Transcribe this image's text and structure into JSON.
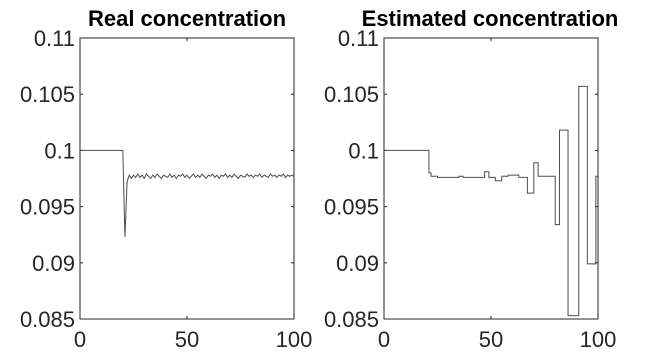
{
  "chart_data": [
    {
      "type": "line",
      "title": "Real concentration",
      "xlabel": "",
      "ylabel": "",
      "xlim": [
        0,
        100
      ],
      "ylim": [
        0.085,
        0.11
      ],
      "xticks": [
        "0",
        "50",
        "100"
      ],
      "yticks": [
        "0.085",
        "0.09",
        "0.095",
        "0.1",
        "0.105",
        "0.11"
      ],
      "grid": false,
      "series": [
        {
          "color": "#4d4d4d",
          "x": [
            0,
            20,
            21,
            22,
            23,
            24,
            25,
            26,
            27,
            28,
            29,
            30,
            31,
            32,
            33,
            34,
            35,
            36,
            37,
            38,
            39,
            40,
            41,
            42,
            43,
            44,
            45,
            46,
            47,
            48,
            49,
            50,
            51,
            52,
            53,
            54,
            55,
            56,
            57,
            58,
            59,
            60,
            61,
            62,
            63,
            64,
            65,
            66,
            67,
            68,
            69,
            70,
            71,
            72,
            73,
            74,
            75,
            76,
            77,
            78,
            79,
            80,
            81,
            82,
            83,
            84,
            85,
            86,
            87,
            88,
            89,
            90,
            91,
            92,
            93,
            94,
            95,
            96,
            97,
            98,
            99,
            100
          ],
          "y": [
            0.1,
            0.1,
            0.0923,
            0.0972,
            0.0978,
            0.0975,
            0.0978,
            0.0976,
            0.0979,
            0.0976,
            0.0978,
            0.0975,
            0.0979,
            0.0977,
            0.0975,
            0.0978,
            0.0976,
            0.0979,
            0.0977,
            0.0975,
            0.0978,
            0.0977,
            0.0976,
            0.0979,
            0.0976,
            0.0978,
            0.0975,
            0.0978,
            0.0977,
            0.0979,
            0.0976,
            0.0978,
            0.0975,
            0.0977,
            0.0979,
            0.0976,
            0.0978,
            0.0976,
            0.0979,
            0.0977,
            0.0975,
            0.0978,
            0.0977,
            0.0979,
            0.0976,
            0.0978,
            0.0975,
            0.0978,
            0.0977,
            0.0979,
            0.0976,
            0.0978,
            0.0976,
            0.0979,
            0.0977,
            0.0975,
            0.0978,
            0.0977,
            0.0976,
            0.0979,
            0.0977,
            0.0978,
            0.0976,
            0.0978,
            0.0977,
            0.0979,
            0.0976,
            0.0978,
            0.0977,
            0.0976,
            0.0979,
            0.0977,
            0.0978,
            0.0976,
            0.0978,
            0.0977,
            0.0979,
            0.0976,
            0.0978,
            0.0977,
            0.0978,
            0.0977
          ]
        }
      ]
    },
    {
      "type": "line",
      "step": true,
      "title": "Estimated concentration",
      "xlabel": "",
      "ylabel": "",
      "xlim": [
        0,
        100
      ],
      "ylim": [
        0.085,
        0.11
      ],
      "xticks": [
        "0",
        "50",
        "100"
      ],
      "yticks": [
        "0.085",
        "0.09",
        "0.095",
        "0.1",
        "0.105",
        "0.11"
      ],
      "grid": false,
      "series": [
        {
          "color": "#4d4d4d",
          "x": [
            0,
            20,
            21,
            22,
            25,
            30,
            35,
            37,
            45,
            47,
            49,
            50,
            52,
            55,
            58,
            60,
            63,
            65,
            67,
            69,
            70,
            71,
            72,
            74,
            75,
            76,
            78,
            80,
            81,
            82,
            83,
            85,
            86,
            87,
            88,
            90,
            91,
            92,
            93,
            94,
            95,
            97,
            98,
            99,
            100
          ],
          "y": [
            0.1,
            0.1,
            0.098,
            0.0977,
            0.0976,
            0.0976,
            0.0977,
            0.0976,
            0.0976,
            0.0981,
            0.0976,
            0.0976,
            0.0973,
            0.0977,
            0.0978,
            0.0978,
            0.0976,
            0.0976,
            0.0962,
            0.0962,
            0.0989,
            0.0989,
            0.0977,
            0.0977,
            0.0977,
            0.0977,
            0.0977,
            0.0934,
            0.0934,
            0.1018,
            0.1018,
            0.1018,
            0.0853,
            0.0853,
            0.0853,
            0.0853,
            0.1057,
            0.1057,
            0.1057,
            0.1057,
            0.0899,
            0.0899,
            0.0899,
            0.0977,
            0.0977
          ]
        }
      ]
    }
  ]
}
